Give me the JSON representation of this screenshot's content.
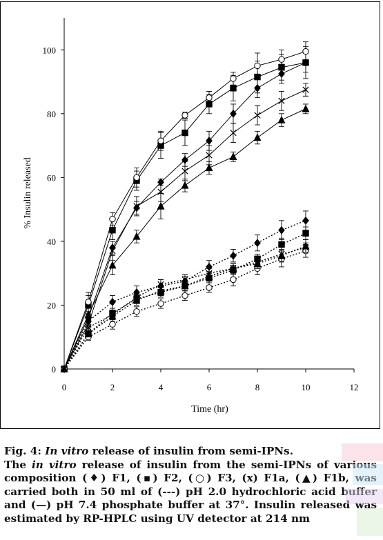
{
  "chart_data": {
    "type": "line",
    "xlabel": "Time (hr)",
    "ylabel": "% Insulin released",
    "xlim": [
      0,
      12
    ],
    "ylim": [
      0,
      110
    ],
    "xticks": [
      "0",
      "2",
      "4",
      "6",
      "8",
      "10",
      "12"
    ],
    "yticks": [
      "0",
      "20",
      "40",
      "60",
      "80",
      "100"
    ],
    "grid": false,
    "x": [
      0,
      1,
      2,
      3,
      4,
      5,
      6,
      7,
      8,
      9,
      10
    ],
    "series": [
      {
        "name": "F1",
        "marker": "diamond",
        "fill": "#000000",
        "medium": "pH 7.4",
        "style": "solid",
        "values": [
          0,
          16,
          38,
          50.5,
          58.5,
          65.5,
          71.5,
          80,
          88,
          92.5,
          96
        ],
        "err": [
          0,
          1.5,
          2,
          2,
          1,
          2,
          3,
          3,
          3,
          3,
          3
        ]
      },
      {
        "name": "F2",
        "marker": "square",
        "fill": "#000000",
        "medium": "pH 7.4",
        "style": "solid",
        "values": [
          0,
          20,
          43.5,
          59,
          70,
          74,
          83,
          88,
          91.5,
          94.5,
          96
        ],
        "err": [
          0,
          3,
          3,
          3,
          4,
          4,
          3,
          4,
          5,
          4,
          5
        ]
      },
      {
        "name": "F3",
        "marker": "circle",
        "fill": "#ffffff",
        "medium": "pH 7.4",
        "style": "solid",
        "values": [
          0,
          21,
          47,
          60,
          71.5,
          79.5,
          85,
          91,
          95,
          97,
          99.5
        ],
        "err": [
          0,
          3,
          2,
          3,
          3,
          1,
          2,
          2,
          4,
          3,
          3
        ]
      },
      {
        "name": "F1a",
        "marker": "x",
        "fill": "#000000",
        "medium": "pH 7.4",
        "style": "solid",
        "values": [
          0,
          14,
          37,
          51,
          55.5,
          62,
          67,
          74,
          79.5,
          84,
          87.5
        ],
        "err": [
          0,
          1.5,
          3,
          3,
          3,
          3,
          3,
          3,
          3,
          3,
          2
        ]
      },
      {
        "name": "F1b",
        "marker": "triangle",
        "fill": "#000000",
        "medium": "pH 7.4",
        "style": "solid",
        "values": [
          0,
          17,
          32.5,
          41.5,
          51,
          57.5,
          63,
          66.5,
          72.5,
          78,
          81.5
        ],
        "err": [
          0,
          2,
          3,
          2,
          4,
          2,
          2,
          1.5,
          2,
          2,
          1.5
        ]
      },
      {
        "name": "F1",
        "marker": "diamond",
        "fill": "#000000",
        "medium": "pH 2.0",
        "style": "dotted",
        "values": [
          0,
          15,
          21,
          24,
          26,
          27.5,
          32,
          35.5,
          39.5,
          43.5,
          46.5
        ],
        "err": [
          0,
          2,
          2,
          2,
          2,
          1.5,
          2,
          2,
          2.5,
          3,
          3
        ]
      },
      {
        "name": "F2",
        "marker": "square",
        "fill": "#000000",
        "medium": "pH 2.0",
        "style": "dotted",
        "values": [
          0,
          11,
          17.5,
          22,
          24,
          26,
          28.5,
          31,
          34.5,
          39,
          42.5
        ],
        "err": [
          0,
          1,
          1.5,
          1.5,
          1.5,
          1.5,
          1.5,
          1.5,
          1.5,
          2,
          2
        ]
      },
      {
        "name": "F3",
        "marker": "circle",
        "fill": "#ffffff",
        "medium": "pH 2.0",
        "style": "dotted",
        "values": [
          0,
          10,
          14,
          18,
          20.5,
          23,
          25.5,
          28,
          31.5,
          34.5,
          37
        ],
        "err": [
          0,
          1,
          1.5,
          1.5,
          1.5,
          1.5,
          1.5,
          2,
          2,
          2.5,
          2
        ]
      },
      {
        "name": "F1a",
        "marker": "x",
        "fill": "#000000",
        "medium": "pH 2.0",
        "style": "dotted",
        "values": [
          0,
          13,
          17,
          22.5,
          26.5,
          28,
          30,
          31.5,
          33.5,
          36,
          38
        ],
        "err": [
          0,
          1,
          1.5,
          1.5,
          1.5,
          1.5,
          1.5,
          1.5,
          1.5,
          1.5,
          1.5
        ]
      },
      {
        "name": "F1b",
        "marker": "triangle",
        "fill": "#000000",
        "medium": "pH 2.0",
        "style": "dotted",
        "values": [
          0,
          11,
          16.5,
          21.5,
          24.5,
          26,
          29,
          31.5,
          33,
          35.5,
          38.5
        ],
        "err": [
          0,
          1,
          1.5,
          1.5,
          1.5,
          1.5,
          1.5,
          1.5,
          1.5,
          2,
          2
        ]
      }
    ]
  },
  "caption": {
    "fig_label": "Fig. 4:",
    "title_italic": "In vitro",
    "title_rest": " release of insulin from semi-IPNs.",
    "body_1": "The ",
    "body_italic": "in vitro",
    "body_2": " release of insulin from the semi-IPNs of various composition (♦) F1, (▪) F2, (○) F3, (x) F1a, (▲) F1b, was carried both in 50 ml of (---) pH 2.0 hydrochloric acid buffer and (—) pH 7.4 phosphate buffer at 37°. Insulin released was estimated by RP-HPLC using UV detector at 214 nm"
  }
}
